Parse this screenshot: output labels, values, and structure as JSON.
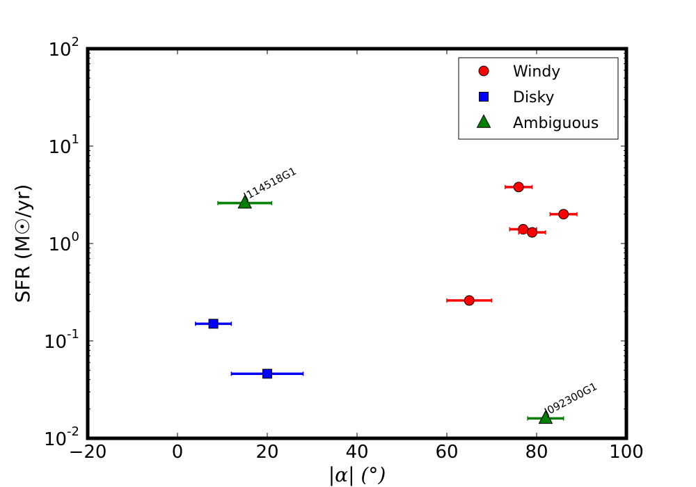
{
  "chart_data": {
    "type": "scatter",
    "title": "",
    "xlabel": "|α| (°)",
    "ylabel": "SFR (M☉/yr)",
    "xlim": [
      -20,
      100
    ],
    "ylim": [
      0.01,
      100
    ],
    "yscale": "log",
    "grid": false,
    "legend_position": "top-right",
    "x_ticks": [
      -20,
      0,
      20,
      40,
      60,
      80,
      100
    ],
    "x_tick_labels": [
      "−20",
      "0",
      "20",
      "40",
      "60",
      "80",
      "100"
    ],
    "y_ticks": [
      0.01,
      0.1,
      1,
      10,
      100
    ],
    "y_tick_labels": [
      {
        "base": "10",
        "exp": "-2"
      },
      {
        "base": "10",
        "exp": "-1"
      },
      {
        "base": "10",
        "exp": "0"
      },
      {
        "base": "10",
        "exp": "1"
      },
      {
        "base": "10",
        "exp": "2"
      }
    ],
    "series": [
      {
        "name": "Windy",
        "marker": "circle",
        "color": "#ff0000",
        "points": [
          {
            "x": 65,
            "y": 0.26,
            "xerr": 5
          },
          {
            "x": 76,
            "y": 3.8,
            "xerr": 3
          },
          {
            "x": 77,
            "y": 1.4,
            "xerr": 3
          },
          {
            "x": 79,
            "y": 1.3,
            "xerr": 3
          },
          {
            "x": 86,
            "y": 2.0,
            "xerr": 3
          }
        ]
      },
      {
        "name": "Disky",
        "marker": "square",
        "color": "#0000ff",
        "points": [
          {
            "x": 8,
            "y": 0.15,
            "xerr": 4
          },
          {
            "x": 20,
            "y": 0.046,
            "xerr": 8
          }
        ]
      },
      {
        "name": "Ambiguous",
        "marker": "triangle",
        "color": "#008000",
        "points": [
          {
            "x": 15,
            "y": 2.6,
            "xerr": 6,
            "label": "J114518G1"
          },
          {
            "x": 82,
            "y": 0.016,
            "xerr": 4,
            "label": "J092300G1"
          }
        ]
      }
    ]
  }
}
